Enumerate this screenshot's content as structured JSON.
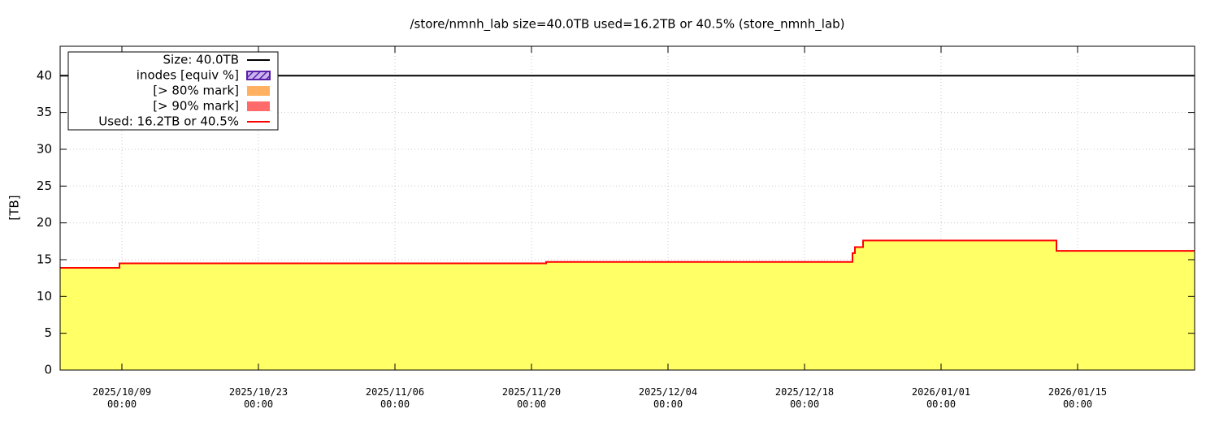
{
  "chart_data": {
    "type": "line",
    "title": "/store/nmnh_lab size=40.0TB used=16.2TB or 40.5% (store_nmnh_lab)",
    "ylabel": "[TB]",
    "ylim": [
      0,
      44
    ],
    "yticks": [
      0,
      5,
      10,
      15,
      20,
      25,
      30,
      35,
      40
    ],
    "xlim": [
      "2025-10-02 16:00",
      "2026-01-27 00:00"
    ],
    "xticks": [
      {
        "value": "2025-10-09 00:00",
        "label": "2025/10/09\n00:00"
      },
      {
        "value": "2025-10-23 00:00",
        "label": "2025/10/23\n00:00"
      },
      {
        "value": "2025-11-06 00:00",
        "label": "2025/11/06\n00:00"
      },
      {
        "value": "2025-11-20 00:00",
        "label": "2025/11/20\n00:00"
      },
      {
        "value": "2025-12-04 00:00",
        "label": "2025/12/04\n00:00"
      },
      {
        "value": "2025-12-18 00:00",
        "label": "2025/12/18\n00:00"
      },
      {
        "value": "2026-01-01 00:00",
        "label": "2026/01/01\n00:00"
      },
      {
        "value": "2026-01-15 00:00",
        "label": "2026/01/15\n00:00"
      }
    ],
    "grid": true,
    "legend": "upper left",
    "series": [
      {
        "name": "Size: 40.0TB",
        "color": "#000000",
        "style": "line",
        "x": [
          "2025-10-02 16:00",
          "2026-01-27 00:00"
        ],
        "values": [
          40,
          40
        ]
      },
      {
        "name": "inodes [equiv %]",
        "color": "#5a1fa8",
        "style": "hatch",
        "x": [
          "2025-10-02 16:00",
          "2025-10-04 08:00",
          "2025-10-04 12:00",
          "2025-10-04 16:00",
          "2025-11-02 14:00",
          "2025-11-02 18:00",
          "2025-11-02 22:00",
          "2025-12-01 16:00",
          "2025-12-01 20:00",
          "2025-12-02 00:00",
          "2025-12-30 18:00",
          "2025-12-30 22:00",
          "2025-12-31 02:00",
          "2026-01-27 00:00"
        ],
        "values": [
          0.4,
          0.4,
          null,
          0.4,
          0.4,
          null,
          0.4,
          0.4,
          null,
          0.4,
          0.4,
          null,
          0.4,
          0.4
        ]
      },
      {
        "name": "[> 80% mark]",
        "color": "#ffb060",
        "style": "fill"
      },
      {
        "name": "[> 90% mark]",
        "color": "#ff6a6a",
        "style": "fill"
      },
      {
        "name": "Used: 16.2TB or 40.5%",
        "color": "#ff0000",
        "area_color": "#ffff66",
        "style": "line",
        "x": [
          "2025-10-02 16:00",
          "2025-10-08 18:00",
          "2025-10-08 18:00",
          "2025-11-21 12:00",
          "2025-11-21 12:00",
          "2025-12-22 22:00",
          "2025-12-22 22:00",
          "2025-12-23 04:00",
          "2025-12-23 04:00",
          "2025-12-24 00:00",
          "2025-12-24 00:00",
          "2026-01-12 20:00",
          "2026-01-12 20:00",
          "2026-01-27 00:00"
        ],
        "values": [
          13.9,
          13.9,
          14.5,
          14.5,
          14.7,
          14.7,
          15.9,
          15.9,
          16.7,
          16.7,
          17.6,
          17.6,
          16.2,
          16.2
        ]
      }
    ]
  }
}
